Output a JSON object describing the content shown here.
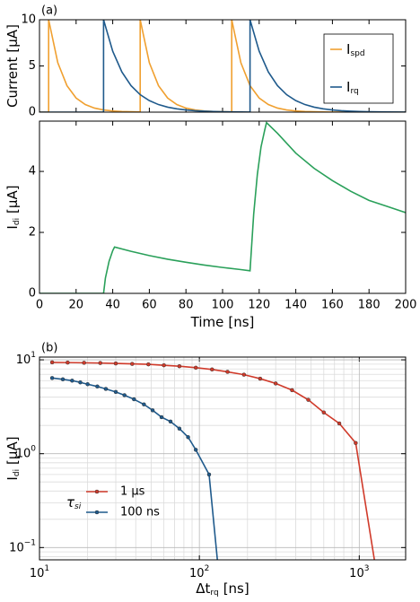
{
  "chart_data": [
    {
      "type": "line",
      "annotation": "(a)",
      "ylabel": {
        "text": "Current",
        "unit": "[µA]"
      },
      "xlim": [
        0,
        200
      ],
      "ylim": [
        0,
        10
      ],
      "xticks": [
        0,
        20,
        40,
        60,
        80,
        100,
        120,
        140,
        160,
        180,
        200
      ],
      "yticks": [
        0,
        5,
        10
      ],
      "xticklabels": false,
      "legend": "upper right",
      "series": [
        {
          "name": "I",
          "name_sub": "spd",
          "color": "#f0a030",
          "x": [
            0,
            5,
            5,
            10,
            15,
            20,
            25,
            30,
            35,
            40,
            45,
            50,
            55,
            55,
            60,
            65,
            70,
            75,
            80,
            85,
            90,
            95,
            100,
            105,
            105,
            110,
            115,
            120,
            125,
            130,
            135,
            140,
            145,
            150,
            155,
            160,
            200
          ],
          "values": [
            0,
            0,
            10,
            5.35,
            2.87,
            1.53,
            0.82,
            0.44,
            0.24,
            0.13,
            0.07,
            0.04,
            0.02,
            10,
            5.35,
            2.87,
            1.53,
            0.82,
            0.44,
            0.24,
            0.13,
            0.07,
            0.04,
            0.02,
            10,
            5.35,
            2.87,
            1.53,
            0.82,
            0.44,
            0.24,
            0.13,
            0.07,
            0.04,
            0.02,
            0.01,
            0
          ]
        },
        {
          "name": "I",
          "name_sub": "rq",
          "color": "#1f5a8c",
          "x": [
            0,
            35,
            35,
            40,
            45,
            50,
            55,
            60,
            65,
            70,
            75,
            80,
            85,
            90,
            95,
            100,
            105,
            110,
            115,
            115,
            120,
            125,
            130,
            135,
            140,
            145,
            150,
            155,
            160,
            165,
            170,
            175,
            180,
            185,
            190,
            200
          ],
          "values": [
            0,
            0,
            10,
            6.59,
            4.35,
            2.87,
            1.89,
            1.25,
            0.82,
            0.54,
            0.36,
            0.24,
            0.15,
            0.1,
            0.07,
            0.04,
            0.03,
            0.02,
            0.01,
            10,
            6.59,
            4.35,
            2.87,
            1.89,
            1.25,
            0.82,
            0.54,
            0.36,
            0.24,
            0.15,
            0.1,
            0.07,
            0.04,
            0.03,
            0.02,
            0.01
          ]
        }
      ]
    },
    {
      "type": "line",
      "ylabel": {
        "text": "I",
        "sub": "di",
        "unit": "[µA]"
      },
      "xlabel": {
        "text": "Time",
        "unit": "[ns]"
      },
      "xlim": [
        0,
        200
      ],
      "ylim": [
        0,
        5.65
      ],
      "xticks": [
        0,
        20,
        40,
        60,
        80,
        100,
        120,
        140,
        160,
        180,
        200
      ],
      "yticks": [
        0,
        2,
        4
      ],
      "series": [
        {
          "color": "#2aa05a",
          "x": [
            0,
            35,
            36,
            38,
            40,
            41,
            50,
            60,
            70,
            80,
            90,
            100,
            110,
            115,
            117,
            119,
            121,
            123,
            124,
            130,
            140,
            150,
            160,
            170,
            180,
            190,
            200
          ],
          "values": [
            0,
            0,
            0.5,
            1.05,
            1.4,
            1.52,
            1.38,
            1.24,
            1.12,
            1.02,
            0.93,
            0.85,
            0.78,
            0.74,
            2.6,
            3.9,
            4.8,
            5.35,
            5.6,
            5.25,
            4.6,
            4.1,
            3.7,
            3.35,
            3.05,
            2.85,
            2.65
          ]
        }
      ]
    },
    {
      "type": "scatter",
      "annotation": "(b)",
      "ylabel": {
        "text": "I",
        "sub": "di",
        "unit": "[µA]"
      },
      "xlabel": {
        "text": "Δt",
        "sub": "rq",
        "unit": "[ns]"
      },
      "xscale": "log",
      "yscale": "log",
      "grid": true,
      "xlim": [
        10,
        1950
      ],
      "ylim": [
        0.074,
        10.7
      ],
      "xticks": [
        {
          "value": 10,
          "label": "10",
          "exp": "1"
        },
        {
          "value": 100,
          "label": "10",
          "exp": "2"
        },
        {
          "value": 1000,
          "label": "10",
          "exp": "3"
        }
      ],
      "yticks": [
        {
          "value": 0.1,
          "label": "10",
          "exp": "−1"
        },
        {
          "value": 1,
          "label": "10",
          "exp": "0"
        },
        {
          "value": 10,
          "label": "10",
          "exp": "1"
        }
      ],
      "xminor": [
        20,
        30,
        40,
        50,
        60,
        70,
        80,
        90,
        200,
        300,
        400,
        500,
        600,
        700,
        800,
        900
      ],
      "yminor": [
        0.08,
        0.09,
        0.2,
        0.3,
        0.4,
        0.5,
        0.6,
        0.7,
        0.8,
        0.9,
        2,
        3,
        4,
        5,
        6,
        7,
        8,
        9
      ],
      "legend": "lower left",
      "legend_title": {
        "text": "τ",
        "sub": "si"
      },
      "series": [
        {
          "name": "1 µs",
          "color": "#d03a2a",
          "x": [
            12,
            15,
            19,
            24,
            30,
            38,
            48,
            60,
            75,
            95,
            120,
            150,
            190,
            240,
            300,
            380,
            480,
            600,
            750,
            950,
            1250
          ],
          "values": [
            9.4,
            9.35,
            9.3,
            9.25,
            9.15,
            9.05,
            8.95,
            8.75,
            8.55,
            8.25,
            7.9,
            7.45,
            6.95,
            6.3,
            5.6,
            4.75,
            3.75,
            2.75,
            2.1,
            1.3,
            0.07
          ]
        },
        {
          "name": "100 ns",
          "color": "#1f5a8c",
          "x": [
            12,
            14,
            16,
            18,
            20,
            23,
            26,
            30,
            34,
            39,
            45,
            51,
            58,
            66,
            75,
            85,
            95,
            115,
            130
          ],
          "values": [
            6.4,
            6.2,
            6,
            5.75,
            5.5,
            5.2,
            4.9,
            4.55,
            4.2,
            3.8,
            3.35,
            2.9,
            2.45,
            2.2,
            1.85,
            1.5,
            1.1,
            0.6,
            0.07
          ]
        }
      ]
    }
  ]
}
